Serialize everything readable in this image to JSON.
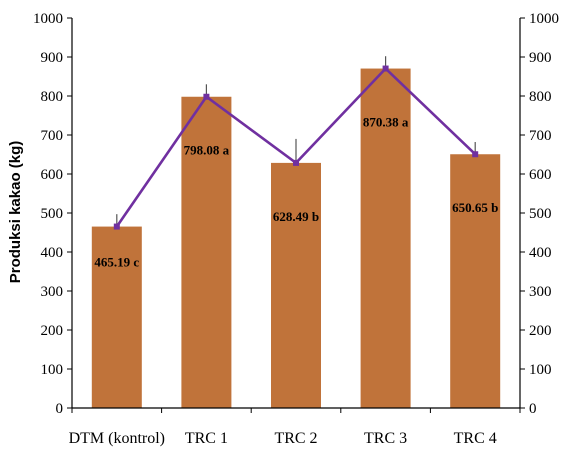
{
  "chart_data": {
    "type": "bar",
    "categories": [
      "DTM (kontrol)",
      "TRC 1",
      "TRC 2",
      "TRC 3",
      "TRC 4"
    ],
    "values": [
      465.19,
      798.08,
      628.49,
      870.38,
      650.65
    ],
    "data_labels": [
      "465.19 c",
      "798.08 a",
      "628.49 b",
      "870.38 a",
      "650.65 b"
    ],
    "error_bars_upper": [
      497,
      830,
      690,
      902,
      682
    ],
    "line_series": {
      "values": [
        465.19,
        798.08,
        628.49,
        870.38,
        650.65
      ],
      "color": "#7030a0"
    },
    "ylabel": "Produksi kakao (kg)",
    "ylim": [
      0,
      1000
    ],
    "yticks": [
      0,
      100,
      200,
      300,
      400,
      500,
      600,
      700,
      800,
      900,
      1000
    ],
    "secondary_ylim": [
      0,
      1000
    ],
    "grid": false,
    "colors": {
      "bar": "#c0733a",
      "line": "#7030a0",
      "axis": "#000000"
    }
  }
}
